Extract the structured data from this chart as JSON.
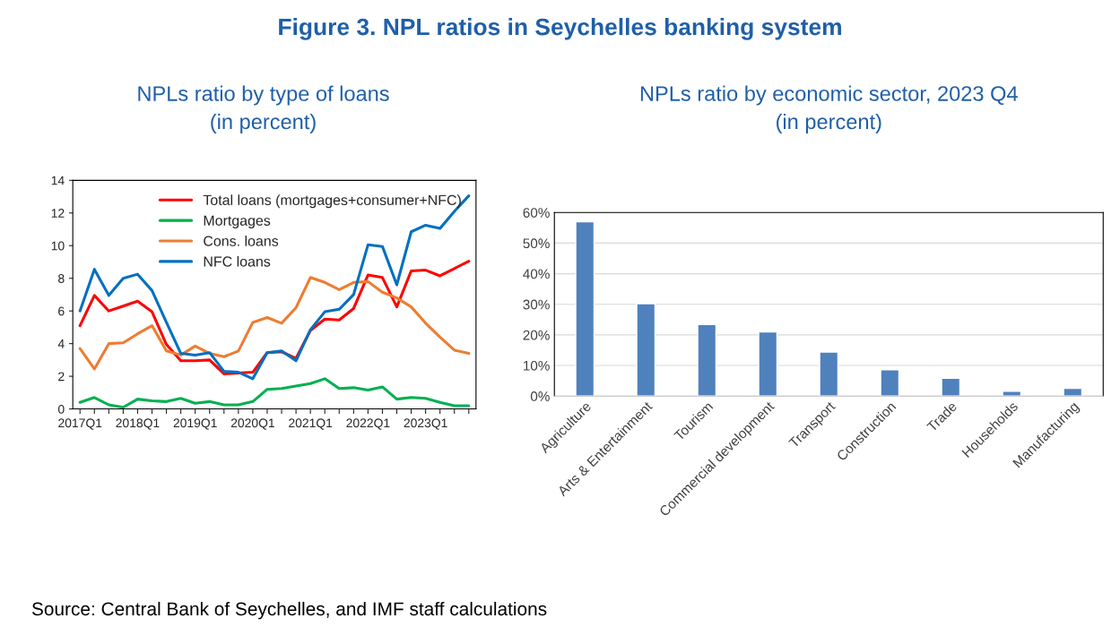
{
  "chart_data": [
    {
      "type": "line",
      "title": "Figure 3. NPL ratios in Seychelles banking system",
      "subtitle": "NPLs ratio by type of loans\n(in percent)",
      "categories": [
        "2017Q1",
        null,
        null,
        null,
        "2018Q1",
        null,
        null,
        null,
        "2019Q1",
        null,
        null,
        null,
        "2020Q1",
        null,
        null,
        null,
        "2021Q1",
        null,
        null,
        null,
        "2022Q1",
        null,
        null,
        null,
        "2023Q1",
        null,
        null,
        null
      ],
      "series": [
        {
          "name": "Total loans (mortgages+consumer+NFC)",
          "color": "#ff0000",
          "values": [
            5.1,
            6.95,
            6.0,
            6.3,
            6.6,
            5.95,
            3.95,
            2.95,
            2.95,
            3.0,
            2.15,
            2.2,
            2.25,
            3.45,
            3.5,
            3.1,
            4.8,
            5.5,
            5.45,
            6.15,
            8.2,
            8.05,
            6.25,
            8.45,
            8.5,
            8.15,
            8.6,
            9.05
          ]
        },
        {
          "name": "Mortgages",
          "color": "#00b050",
          "values": [
            0.4,
            0.7,
            0.25,
            0.1,
            0.6,
            0.5,
            0.45,
            0.65,
            0.35,
            0.45,
            0.25,
            0.25,
            0.45,
            1.2,
            1.25,
            1.4,
            1.55,
            1.85,
            1.25,
            1.3,
            1.15,
            1.35,
            0.6,
            0.7,
            0.65,
            0.4,
            0.2,
            0.2
          ]
        },
        {
          "name": "Cons. loans",
          "color": "#ed7d31",
          "values": [
            3.7,
            2.45,
            4.0,
            4.05,
            4.6,
            5.1,
            3.55,
            3.3,
            3.85,
            3.4,
            3.2,
            3.55,
            5.3,
            5.6,
            5.25,
            6.2,
            8.05,
            7.75,
            7.3,
            7.75,
            7.8,
            7.15,
            6.8,
            6.25,
            5.25,
            4.4,
            3.6,
            3.4
          ]
        },
        {
          "name": "NFC loans",
          "color": "#0070c0",
          "values": [
            6.0,
            8.55,
            6.95,
            8.0,
            8.25,
            7.25,
            5.3,
            3.4,
            3.3,
            3.45,
            2.3,
            2.25,
            1.85,
            3.45,
            3.55,
            2.95,
            4.85,
            5.95,
            6.1,
            7.0,
            10.05,
            9.95,
            7.6,
            10.85,
            11.25,
            11.05,
            12.1,
            13.05
          ]
        }
      ],
      "ylim": [
        0,
        14
      ],
      "yticks": [
        0,
        2,
        4,
        6,
        8,
        10,
        12,
        14
      ],
      "grid": false,
      "legend": "top right",
      "marker": "none",
      "line_style": "solid",
      "annotations": [
        "Source: Central Bank of Seychelles, and IMF staff calculations"
      ]
    },
    {
      "type": "bar",
      "subtitle": "NPLs ratio by economic sector, 2023 Q4\n(in percent)",
      "categories": [
        "Agriculture",
        "Arts & Entertainment",
        "Tourism",
        "Commercial development",
        "Transport",
        "Construction",
        "Trade",
        "Households",
        "Manufacturing"
      ],
      "values": [
        57,
        30.2,
        23.4,
        21,
        14.4,
        8.6,
        5.8,
        1.6,
        2.5
      ],
      "color": "#4f81bd",
      "ylim": [
        0,
        60
      ],
      "yticks": [
        {
          "value": 0,
          "label": "0%"
        },
        {
          "value": 10,
          "label": "10%"
        },
        {
          "value": 20,
          "label": "20%"
        },
        {
          "value": 30,
          "label": "30%"
        },
        {
          "value": 40,
          "label": "40%"
        },
        {
          "value": 50,
          "label": "50%"
        },
        {
          "value": 60,
          "label": "60%"
        }
      ],
      "grid": "y",
      "legend": false
    }
  ]
}
